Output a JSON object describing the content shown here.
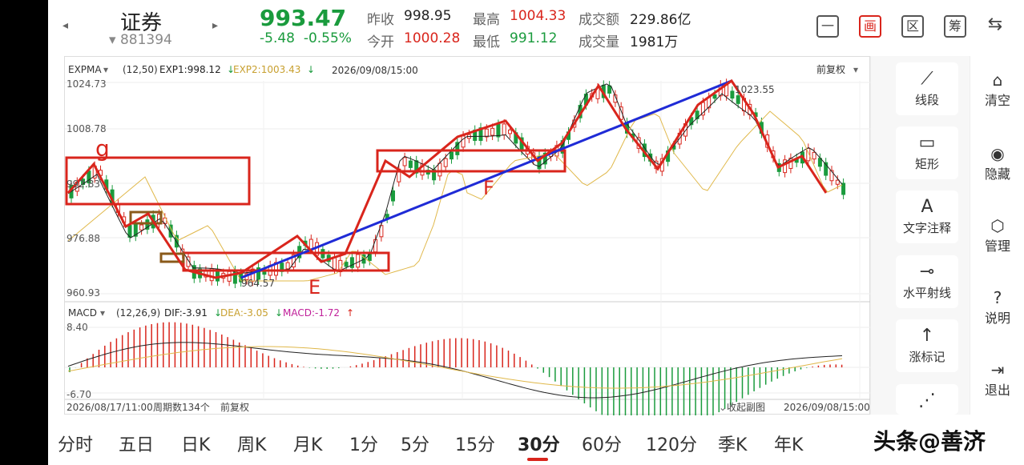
{
  "header": {
    "prev_arrow": "◂",
    "next_arrow": "▸",
    "name": "证券",
    "code": "881394",
    "price": "993.47",
    "change": "-5.48",
    "change_pct": "-0.55%",
    "quotes": [
      {
        "label": "昨收",
        "value": "998.95",
        "color": "normal"
      },
      {
        "label": "今开",
        "value": "1000.28",
        "color": "red"
      },
      {
        "label": "最高",
        "value": "1004.33",
        "color": "red"
      },
      {
        "label": "最低",
        "value": "991.12",
        "color": "green"
      },
      {
        "label": "成交额",
        "value": "229.86亿",
        "color": "normal"
      },
      {
        "label": "成交量",
        "value": "1981万",
        "color": "normal"
      }
    ],
    "mode_icons": [
      {
        "name": "minimize-icon",
        "glyph": "一"
      },
      {
        "name": "draw-mode-icon",
        "glyph": "画"
      },
      {
        "name": "interval-icon",
        "glyph": "区"
      },
      {
        "name": "chip-icon",
        "glyph": "筹"
      },
      {
        "name": "landscape-icon",
        "glyph": "⇆"
      }
    ]
  },
  "main_chart": {
    "indicator": "EXPMA",
    "params": "(12,50)",
    "exp1_label": "EXP1:998.12",
    "exp2_label": "EXP2:1003.43",
    "datetime": "2026/09/08/15:00",
    "adjust": "前复权",
    "y_ticks": [
      "1024.73",
      "1008.78",
      "992.83",
      "976.88",
      "960.93"
    ],
    "annotations": {
      "high_label": "1023.55",
      "low_label": "964.57",
      "g": "g",
      "E": "E",
      "F": "F"
    }
  },
  "macd": {
    "indicator": "MACD",
    "params": "(12,26,9)",
    "dif": "DIF:-3.91",
    "dea": "DEA:-3.05",
    "macd": "MACD:-1.72",
    "y_top": "8.40",
    "y_bottom": "-6.70"
  },
  "footer": {
    "start_time": "2026/08/17/11:00",
    "period_count": "周期数134个",
    "adjust": "前复权",
    "collapse": "收起副图",
    "end_time": "2026/09/08/15:00"
  },
  "tools": [
    {
      "label": "线段",
      "icon": "line-segment-icon",
      "glyph": "⟋"
    },
    {
      "label": "矩形",
      "icon": "rectangle-icon",
      "glyph": "▭"
    },
    {
      "label": "文字注释",
      "icon": "text-annotation-icon",
      "glyph": "A"
    },
    {
      "label": "水平射线",
      "icon": "horizontal-ray-icon",
      "glyph": "⊸"
    },
    {
      "label": "涨标记",
      "icon": "up-mark-icon",
      "glyph": "↑"
    }
  ],
  "side_actions": [
    {
      "label": "清空",
      "icon": "clear-icon",
      "glyph": "⌂"
    },
    {
      "label": "隐藏",
      "icon": "hide-eye-icon",
      "glyph": "◉"
    },
    {
      "label": "管理",
      "icon": "manage-icon",
      "glyph": "⬡"
    },
    {
      "label": "说明",
      "icon": "help-icon",
      "glyph": "?"
    },
    {
      "label": "退出",
      "icon": "exit-icon",
      "glyph": "⇥"
    }
  ],
  "periods": [
    "分时",
    "五日",
    "日K",
    "周K",
    "月K",
    "1分",
    "5分",
    "15分",
    "30分",
    "60分",
    "120分",
    "季K",
    "年K"
  ],
  "active_period": "30分",
  "watermark": "头条@善济",
  "colors": {
    "up": "#d9251c",
    "down": "#1a9b3d",
    "exp1": "#222222",
    "exp2": "#e0b84a",
    "trendline": "#1f2bd6",
    "macd_pink": "#c0209a"
  }
}
